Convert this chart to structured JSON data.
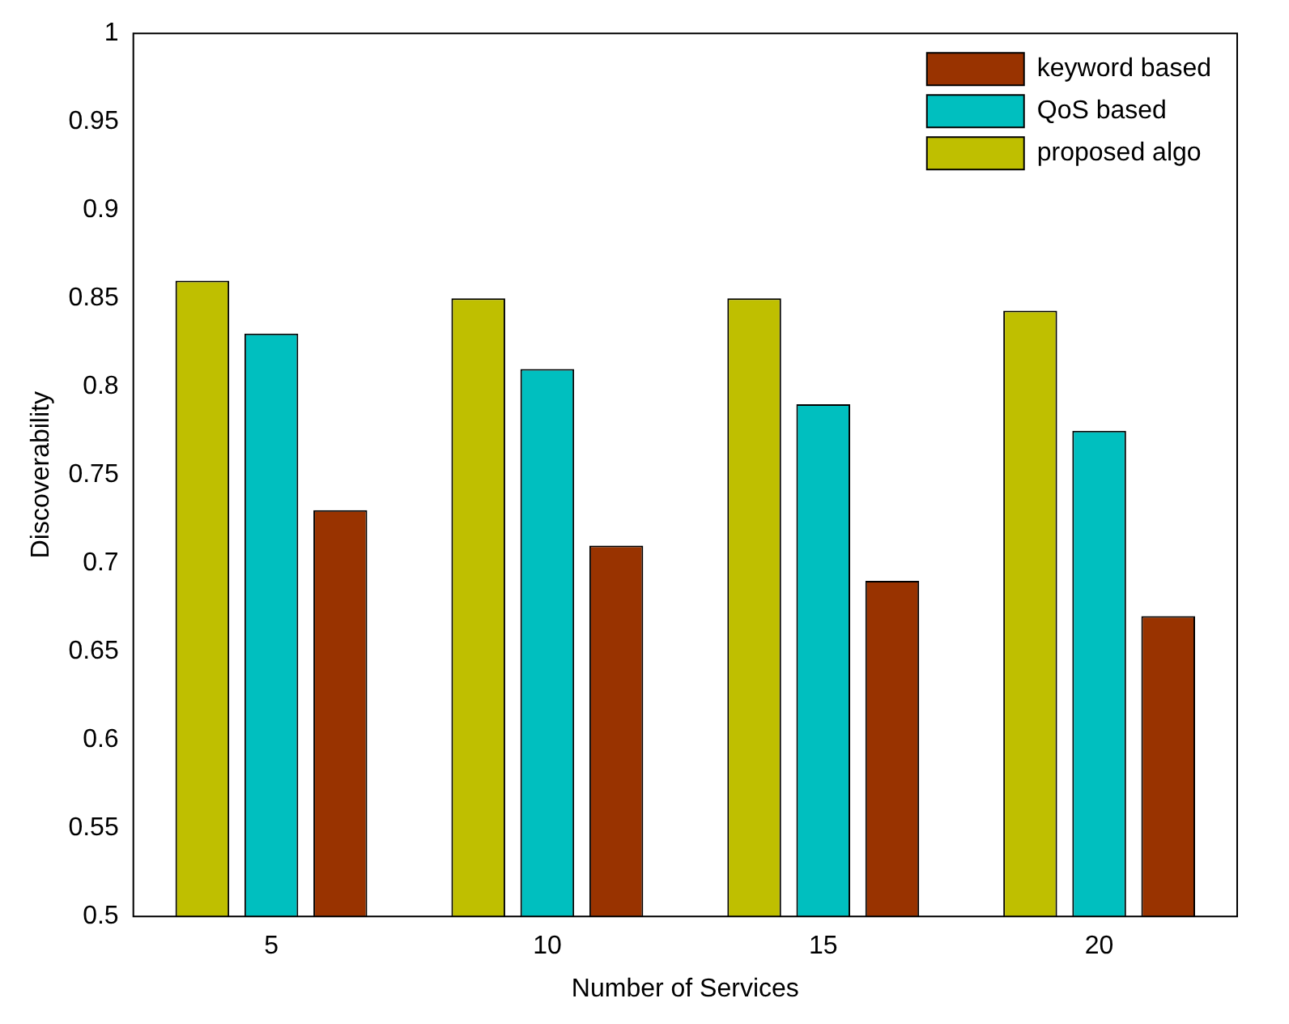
{
  "chart_data": {
    "type": "bar",
    "xlabel": "Number of Services",
    "ylabel": "Discoverability",
    "categories": [
      "5",
      "10",
      "15",
      "20"
    ],
    "series": [
      {
        "name": "proposed algo",
        "color": "#bfbf00",
        "values": [
          0.86,
          0.85,
          0.85,
          0.843
        ]
      },
      {
        "name": "QoS based",
        "color": "#00bfbf",
        "values": [
          0.83,
          0.81,
          0.79,
          0.775
        ]
      },
      {
        "name": "keyword based",
        "color": "#993300",
        "values": [
          0.73,
          0.71,
          0.69,
          0.67
        ]
      }
    ],
    "ylim": [
      0.5,
      1
    ],
    "yticks": [
      0.5,
      0.55,
      0.6,
      0.65,
      0.7,
      0.75,
      0.8,
      0.85,
      0.9,
      0.95,
      1
    ],
    "grid": false,
    "legend": "top right"
  }
}
